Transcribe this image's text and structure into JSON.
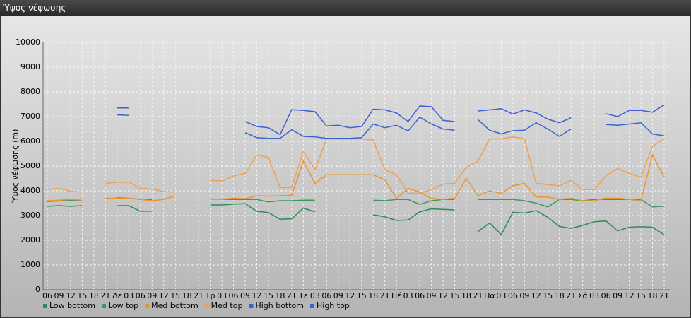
{
  "window_title": "Ύψος νέφωσης",
  "chart_data": {
    "type": "line",
    "ylabel": "Ύψος νέφωσης (m)",
    "categories": [
      "06",
      "09",
      "12",
      "15",
      "18",
      "21",
      "Δε",
      "03",
      "06",
      "09",
      "12",
      "15",
      "18",
      "21",
      "Τρ",
      "03",
      "06",
      "09",
      "12",
      "15",
      "18",
      "21",
      "Τε",
      "03",
      "06",
      "09",
      "12",
      "15",
      "18",
      "21",
      "Πέ",
      "03",
      "06",
      "09",
      "12",
      "15",
      "18",
      "21",
      "Πα",
      "03",
      "06",
      "09",
      "12",
      "15",
      "18",
      "21",
      "Σά",
      "03",
      "06",
      "09",
      "12",
      "15",
      "18",
      "21"
    ],
    "ylim": [
      0,
      10000
    ],
    "yticks": [
      0,
      1000,
      2000,
      3000,
      4000,
      5000,
      6000,
      7000,
      8000,
      9000,
      10000
    ],
    "grid": true,
    "legend": "bottom-left",
    "series": [
      {
        "name": "Low bottom",
        "color": "#2e8b57",
        "values": [
          3370,
          3400,
          3370,
          3400,
          null,
          null,
          3400,
          3400,
          3170,
          3180,
          null,
          null,
          null,
          null,
          3430,
          3430,
          3460,
          3480,
          3170,
          3120,
          2850,
          2870,
          3300,
          3150,
          null,
          null,
          null,
          null,
          3030,
          2950,
          2800,
          2820,
          3150,
          3270,
          3250,
          3230,
          null,
          2350,
          2700,
          2230,
          3130,
          3100,
          3200,
          2930,
          2560,
          2480,
          2600,
          2750,
          2780,
          2380,
          2530,
          2550,
          2530,
          2220
        ]
      },
      {
        "name": "Low top",
        "color": "#3a9a60",
        "values": [
          3570,
          3590,
          3620,
          3600,
          null,
          null,
          3720,
          3700,
          3650,
          3650,
          null,
          null,
          null,
          null,
          3650,
          3650,
          3650,
          3650,
          3650,
          3550,
          3600,
          3600,
          3620,
          3620,
          null,
          null,
          null,
          null,
          3620,
          3600,
          3650,
          3650,
          3450,
          3600,
          3650,
          3650,
          null,
          3650,
          3650,
          3650,
          3650,
          3600,
          3500,
          3350,
          3650,
          3650,
          3600,
          3650,
          3650,
          3650,
          3650,
          3650,
          3350,
          3380
        ]
      },
      {
        "name": "Med bottom",
        "color": "#e8962e",
        "values": [
          3600,
          3620,
          3650,
          3620,
          null,
          3700,
          3700,
          3700,
          3650,
          3600,
          3650,
          3800,
          null,
          null,
          3650,
          3650,
          3700,
          3680,
          3800,
          3780,
          3800,
          3820,
          5200,
          4300,
          4650,
          4650,
          4650,
          4650,
          4650,
          4450,
          3700,
          4100,
          3950,
          3700,
          3650,
          3700,
          4500,
          3800,
          4000,
          3900,
          4200,
          4300,
          3750,
          3750,
          3650,
          3700,
          3600,
          3600,
          3700,
          3700,
          3650,
          3600,
          5450,
          4550
        ]
      },
      {
        "name": "Med top",
        "color": "#f0a050",
        "values": [
          4050,
          4100,
          3980,
          3950,
          null,
          4300,
          4350,
          4350,
          4100,
          4070,
          3970,
          3950,
          null,
          null,
          4420,
          4400,
          4600,
          4700,
          5450,
          5350,
          4130,
          4130,
          5600,
          4850,
          6100,
          6100,
          6100,
          6100,
          6050,
          4850,
          4650,
          3900,
          3900,
          4050,
          4280,
          4300,
          4950,
          5200,
          6100,
          6100,
          6180,
          6100,
          4300,
          4250,
          4200,
          4420,
          4050,
          4050,
          4600,
          4900,
          4700,
          4550,
          5800,
          6100
        ]
      },
      {
        "name": "High bottom",
        "color": "#3a66cc",
        "values": [
          null,
          null,
          null,
          null,
          null,
          null,
          7070,
          7050,
          null,
          null,
          null,
          null,
          null,
          null,
          null,
          null,
          null,
          6350,
          6150,
          6120,
          6120,
          6470,
          6200,
          6180,
          6120,
          6120,
          6120,
          6150,
          6700,
          6550,
          6650,
          6420,
          6980,
          6700,
          6500,
          6450,
          null,
          6880,
          6450,
          6300,
          6430,
          6450,
          6750,
          6500,
          6200,
          6500,
          null,
          null,
          6680,
          6650,
          6700,
          6750,
          6300,
          6220
        ]
      },
      {
        "name": "High top",
        "color": "#3f5fd8",
        "values": [
          null,
          null,
          null,
          null,
          null,
          null,
          7350,
          7350,
          null,
          null,
          null,
          null,
          null,
          null,
          null,
          null,
          null,
          6800,
          6600,
          6550,
          6270,
          7280,
          7250,
          7200,
          6620,
          6650,
          6550,
          6600,
          7300,
          7270,
          7150,
          6800,
          7430,
          7400,
          6850,
          6800,
          null,
          7230,
          7270,
          7320,
          7100,
          7270,
          7150,
          6900,
          6750,
          6950,
          null,
          null,
          7120,
          7000,
          7250,
          7250,
          7180,
          7470
        ]
      }
    ]
  }
}
